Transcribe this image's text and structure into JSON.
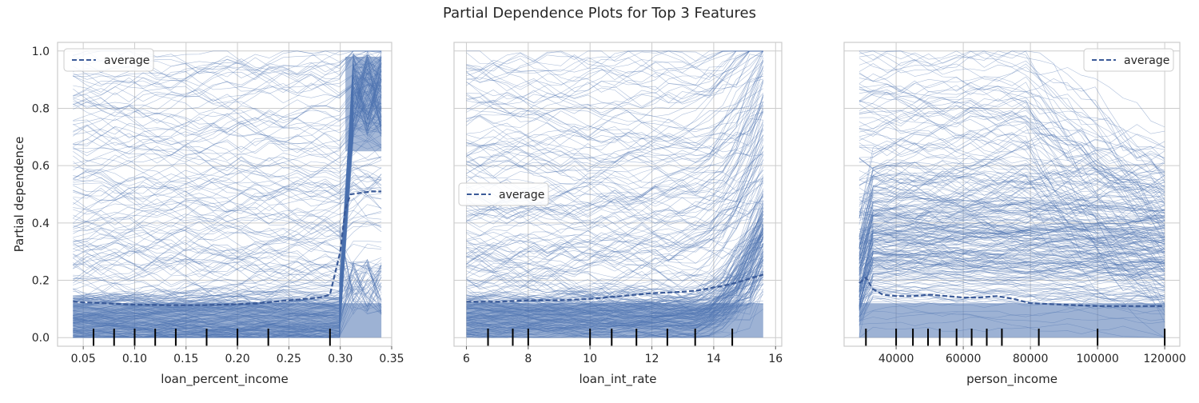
{
  "figure": {
    "suptitle": "Partial Dependence Plots for Top 3 Features",
    "ylabel": "Partial dependence"
  },
  "colors": {
    "ice_line": "#4c72b0",
    "average_line": "#4c72b0",
    "grid": "#cccccc",
    "frame": "#cccccc",
    "rug": "#000000"
  },
  "chart_data": [
    {
      "type": "line",
      "feature": "loan_percent_income",
      "xlabel": "loan_percent_income",
      "ylabel": "Partial dependence",
      "xlim": [
        0.025,
        0.35
      ],
      "ylim": [
        -0.03,
        1.03
      ],
      "xticks": [
        0.05,
        0.1,
        0.15,
        0.2,
        0.25,
        0.3,
        0.35
      ],
      "xtick_labels": [
        "0.05",
        "0.10",
        "0.15",
        "0.20",
        "0.25",
        "0.30",
        "0.35"
      ],
      "yticks": [
        0.0,
        0.2,
        0.4,
        0.6,
        0.8,
        1.0
      ],
      "ytick_labels": [
        "0.0",
        "0.2",
        "0.4",
        "0.6",
        "0.8",
        "1.0"
      ],
      "grid": true,
      "legend": {
        "label": "average",
        "placement": "top-left"
      },
      "average": {
        "name": "average",
        "x": [
          0.04,
          0.07,
          0.1,
          0.13,
          0.16,
          0.19,
          0.22,
          0.25,
          0.28,
          0.29,
          0.3,
          0.305,
          0.31,
          0.32,
          0.33,
          0.34
        ],
        "y": [
          0.125,
          0.12,
          0.115,
          0.113,
          0.113,
          0.115,
          0.12,
          0.13,
          0.14,
          0.15,
          0.3,
          0.45,
          0.5,
          0.505,
          0.51,
          0.51
        ]
      },
      "ice_range": {
        "x_start": 0.04,
        "x_end": 0.34,
        "jump_at": 0.3
      },
      "rug": [
        0.06,
        0.08,
        0.1,
        0.12,
        0.14,
        0.17,
        0.2,
        0.23,
        0.29
      ]
    },
    {
      "type": "line",
      "feature": "loan_int_rate",
      "xlabel": "loan_int_rate",
      "xlim": [
        5.6,
        16.2
      ],
      "ylim": [
        -0.03,
        1.03
      ],
      "xticks": [
        6,
        8,
        10,
        12,
        14,
        16
      ],
      "xtick_labels": [
        "6",
        "8",
        "10",
        "12",
        "14",
        "16"
      ],
      "yticks": [
        0.0,
        0.2,
        0.4,
        0.6,
        0.8,
        1.0
      ],
      "grid": true,
      "legend": {
        "label": "average",
        "placement": "center-left"
      },
      "average": {
        "name": "average",
        "x": [
          6.0,
          7.0,
          8.0,
          9.0,
          10.0,
          11.0,
          12.0,
          13.0,
          13.5,
          14.0,
          14.5,
          15.0,
          15.6
        ],
        "y": [
          0.125,
          0.125,
          0.13,
          0.13,
          0.135,
          0.145,
          0.155,
          0.16,
          0.165,
          0.175,
          0.185,
          0.2,
          0.22
        ]
      },
      "ice_range": {
        "x_start": 6.0,
        "x_end": 15.6
      },
      "rug": [
        6.7,
        7.5,
        8.0,
        10.0,
        10.7,
        11.5,
        12.5,
        13.4,
        14.6
      ]
    },
    {
      "type": "line",
      "feature": "person_income",
      "xlabel": "person_income",
      "xlim": [
        24500,
        124500
      ],
      "ylim": [
        -0.03,
        1.03
      ],
      "xticks": [
        40000,
        60000,
        80000,
        100000,
        120000
      ],
      "xtick_labels": [
        "40000",
        "60000",
        "80000",
        "100000",
        "120000"
      ],
      "yticks": [
        0.0,
        0.2,
        0.4,
        0.6,
        0.8,
        1.0
      ],
      "grid": true,
      "legend": {
        "label": "average",
        "placement": "top-right"
      },
      "average": {
        "name": "average",
        "x": [
          29000,
          31000,
          33000,
          36000,
          40000,
          45000,
          50000,
          55000,
          60000,
          65000,
          70000,
          75000,
          80000,
          90000,
          100000,
          110000,
          120000
        ],
        "y": [
          0.19,
          0.21,
          0.17,
          0.15,
          0.145,
          0.145,
          0.15,
          0.145,
          0.14,
          0.14,
          0.145,
          0.135,
          0.12,
          0.115,
          0.11,
          0.11,
          0.11
        ]
      },
      "ice_range": {
        "x_start": 29000,
        "x_end": 120000
      },
      "rug": [
        31000,
        40000,
        45000,
        49500,
        53000,
        58000,
        62500,
        67000,
        71500,
        82500,
        100000,
        120000
      ]
    }
  ]
}
